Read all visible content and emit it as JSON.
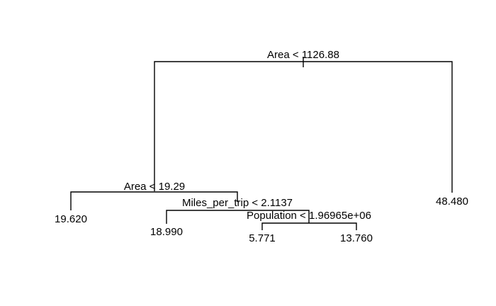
{
  "tree": {
    "split_root": "Area < 1126.88",
    "split_left": "Area < 19.29",
    "split_left_right": "Miles_per_trip < 2.1137",
    "split_left_right_right": "Population < 1.96965e+06",
    "leaf_1": "19.620",
    "leaf_2": "18.990",
    "leaf_3": "5.771",
    "leaf_4": "13.760",
    "leaf_5": "48.480"
  },
  "colors": {
    "line": "#000000",
    "background": "#ffffff"
  }
}
